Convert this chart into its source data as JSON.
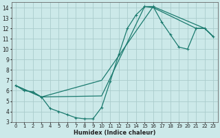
{
  "xlabel": "Humidex (Indice chaleur)",
  "bg_color": "#cce9e9",
  "grid_color": "#aacccc",
  "line_color": "#1a7a6e",
  "xlim": [
    -0.5,
    23.5
  ],
  "ylim": [
    3,
    14.5
  ],
  "xticks": [
    0,
    1,
    2,
    3,
    4,
    5,
    6,
    7,
    8,
    9,
    10,
    11,
    12,
    13,
    14,
    15,
    16,
    17,
    18,
    19,
    20,
    21,
    22,
    23
  ],
  "yticks": [
    3,
    4,
    5,
    6,
    7,
    8,
    9,
    10,
    11,
    12,
    13,
    14
  ],
  "curve1_x": [
    0,
    1,
    2,
    3,
    4,
    5,
    6,
    7,
    8,
    9,
    10,
    11,
    12,
    13,
    14,
    15,
    16,
    17,
    18,
    19,
    20,
    21,
    22,
    23
  ],
  "curve1_y": [
    6.5,
    6.0,
    5.9,
    5.4,
    4.3,
    4.0,
    3.7,
    3.4,
    3.3,
    3.3,
    4.4,
    6.9,
    9.5,
    12.0,
    13.3,
    14.1,
    14.1,
    12.6,
    11.4,
    10.2,
    10.0,
    12.0,
    12.0,
    11.2
  ],
  "curve2_x": [
    0,
    3,
    10,
    15,
    16,
    21,
    22,
    23
  ],
  "curve2_y": [
    6.5,
    5.4,
    5.5,
    14.1,
    14.0,
    12.0,
    12.0,
    11.2
  ],
  "curve3_x": [
    0,
    3,
    10,
    16,
    22,
    23
  ],
  "curve3_y": [
    6.5,
    5.4,
    7.0,
    14.1,
    12.0,
    11.2
  ]
}
